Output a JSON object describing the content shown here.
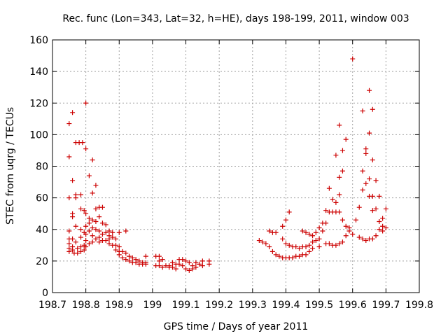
{
  "chart_data": {
    "type": "scatter",
    "title": "Rec. func (Lon=343, Lat=32, h=HE), days 198-199, 2011, window 003",
    "xlabel": "GPS time / Days of year 2011",
    "ylabel": "STEC from uqrg / TECUs",
    "xlim": [
      198.7,
      199.8
    ],
    "ylim": [
      0,
      160
    ],
    "x_ticks": [
      "198.7",
      "198.8",
      "198.9",
      "199",
      "199.1",
      "199.2",
      "199.3",
      "199.4",
      "199.5",
      "199.6",
      "199.7",
      "199.8"
    ],
    "y_ticks": [
      "0",
      "20",
      "40",
      "60",
      "80",
      "100",
      "120",
      "140",
      "160"
    ],
    "x_tick_values": [
      198.7,
      198.8,
      198.9,
      199.0,
      199.1,
      199.2,
      199.3,
      199.4,
      199.5,
      199.6,
      199.7,
      199.8
    ],
    "y_tick_values": [
      0,
      20,
      40,
      60,
      80,
      100,
      120,
      140,
      160
    ],
    "grid": true,
    "marker": "+",
    "color": "#cc0000",
    "series": [
      {
        "name": "STEC",
        "points": [
          [
            198.75,
            107
          ],
          [
            198.75,
            86
          ],
          [
            198.75,
            60
          ],
          [
            198.75,
            39
          ],
          [
            198.75,
            34
          ],
          [
            198.75,
            31
          ],
          [
            198.75,
            28
          ],
          [
            198.75,
            26
          ],
          [
            198.76,
            114
          ],
          [
            198.76,
            71
          ],
          [
            198.76,
            50
          ],
          [
            198.76,
            48
          ],
          [
            198.76,
            34
          ],
          [
            198.76,
            29
          ],
          [
            198.76,
            27
          ],
          [
            198.765,
            25
          ],
          [
            198.77,
            95
          ],
          [
            198.77,
            62
          ],
          [
            198.77,
            60
          ],
          [
            198.77,
            42
          ],
          [
            198.77,
            32
          ],
          [
            198.775,
            28
          ],
          [
            198.775,
            25
          ],
          [
            198.78,
            95
          ],
          [
            198.785,
            62
          ],
          [
            198.785,
            53
          ],
          [
            198.785,
            40
          ],
          [
            198.785,
            35
          ],
          [
            198.785,
            29
          ],
          [
            198.785,
            26
          ],
          [
            198.79,
            95
          ],
          [
            198.795,
            52
          ],
          [
            198.795,
            38
          ],
          [
            198.795,
            30
          ],
          [
            198.795,
            27
          ],
          [
            198.8,
            120
          ],
          [
            198.8,
            91
          ],
          [
            198.8,
            50
          ],
          [
            198.8,
            42
          ],
          [
            198.8,
            37
          ],
          [
            198.8,
            33
          ],
          [
            198.8,
            29
          ],
          [
            198.81,
            74
          ],
          [
            198.81,
            47
          ],
          [
            198.81,
            44
          ],
          [
            198.81,
            39
          ],
          [
            198.81,
            31
          ],
          [
            198.82,
            84
          ],
          [
            198.82,
            63
          ],
          [
            198.82,
            46
          ],
          [
            198.82,
            41
          ],
          [
            198.82,
            36
          ],
          [
            198.82,
            32
          ],
          [
            198.83,
            68
          ],
          [
            198.83,
            53
          ],
          [
            198.83,
            45
          ],
          [
            198.83,
            40
          ],
          [
            198.83,
            34
          ],
          [
            198.84,
            54
          ],
          [
            198.84,
            48
          ],
          [
            198.84,
            39
          ],
          [
            198.84,
            35
          ],
          [
            198.84,
            32
          ],
          [
            198.85,
            54
          ],
          [
            198.85,
            44
          ],
          [
            198.85,
            37
          ],
          [
            198.85,
            33
          ],
          [
            198.86,
            43
          ],
          [
            198.86,
            38
          ],
          [
            198.86,
            33
          ],
          [
            198.87,
            39
          ],
          [
            198.87,
            36
          ],
          [
            198.87,
            34
          ],
          [
            198.87,
            31
          ],
          [
            198.88,
            38
          ],
          [
            198.88,
            35
          ],
          [
            198.88,
            30
          ],
          [
            198.89,
            34
          ],
          [
            198.89,
            30
          ],
          [
            198.89,
            27
          ],
          [
            198.9,
            38
          ],
          [
            198.9,
            29
          ],
          [
            198.9,
            26
          ],
          [
            198.9,
            24
          ],
          [
            198.91,
            26
          ],
          [
            198.91,
            22
          ],
          [
            198.92,
            39
          ],
          [
            198.92,
            25
          ],
          [
            198.92,
            21
          ],
          [
            198.93,
            23
          ],
          [
            198.93,
            20
          ],
          [
            198.94,
            22
          ],
          [
            198.94,
            19
          ],
          [
            198.95,
            21
          ],
          [
            198.95,
            19
          ],
          [
            198.96,
            20
          ],
          [
            198.96,
            18
          ],
          [
            198.97,
            19
          ],
          [
            198.97,
            18
          ],
          [
            198.98,
            23
          ],
          [
            198.98,
            19
          ],
          [
            198.98,
            18
          ],
          [
            199.01,
            23
          ],
          [
            199.01,
            17
          ],
          [
            199.02,
            23
          ],
          [
            199.02,
            20
          ],
          [
            199.02,
            17
          ],
          [
            199.03,
            21
          ],
          [
            199.03,
            16
          ],
          [
            199.04,
            17
          ],
          [
            199.05,
            17
          ],
          [
            199.05,
            16
          ],
          [
            199.06,
            19
          ],
          [
            199.06,
            16
          ],
          [
            199.07,
            18
          ],
          [
            199.07,
            15
          ],
          [
            199.08,
            21
          ],
          [
            199.08,
            18
          ],
          [
            199.09,
            21
          ],
          [
            199.09,
            17
          ],
          [
            199.1,
            20
          ],
          [
            199.1,
            15
          ],
          [
            199.11,
            19
          ],
          [
            199.11,
            14
          ],
          [
            199.12,
            17
          ],
          [
            199.12,
            15
          ],
          [
            199.13,
            19
          ],
          [
            199.13,
            16
          ],
          [
            199.14,
            18
          ],
          [
            199.15,
            20
          ],
          [
            199.15,
            17
          ],
          [
            199.17,
            20
          ],
          [
            199.17,
            18
          ],
          [
            199.32,
            33
          ],
          [
            199.33,
            32
          ],
          [
            199.34,
            31
          ],
          [
            199.35,
            39
          ],
          [
            199.35,
            29
          ],
          [
            199.36,
            38
          ],
          [
            199.36,
            26
          ],
          [
            199.37,
            38
          ],
          [
            199.37,
            24
          ],
          [
            199.38,
            23
          ],
          [
            199.39,
            42
          ],
          [
            199.39,
            34
          ],
          [
            199.39,
            22
          ],
          [
            199.4,
            46
          ],
          [
            199.4,
            31
          ],
          [
            199.4,
            22
          ],
          [
            199.41,
            51
          ],
          [
            199.41,
            30
          ],
          [
            199.41,
            22
          ],
          [
            199.42,
            29
          ],
          [
            199.42,
            22
          ],
          [
            199.43,
            29
          ],
          [
            199.43,
            23
          ],
          [
            199.44,
            28
          ],
          [
            199.44,
            23
          ],
          [
            199.45,
            39
          ],
          [
            199.45,
            29
          ],
          [
            199.45,
            24
          ],
          [
            199.46,
            38
          ],
          [
            199.46,
            29
          ],
          [
            199.46,
            24
          ],
          [
            199.47,
            37
          ],
          [
            199.47,
            30
          ],
          [
            199.47,
            26
          ],
          [
            199.48,
            36
          ],
          [
            199.48,
            32
          ],
          [
            199.48,
            28
          ],
          [
            199.49,
            38
          ],
          [
            199.49,
            33
          ],
          [
            199.5,
            41
          ],
          [
            199.5,
            34
          ],
          [
            199.5,
            29
          ],
          [
            199.51,
            44
          ],
          [
            199.51,
            39
          ],
          [
            199.52,
            52
          ],
          [
            199.52,
            44
          ],
          [
            199.52,
            31
          ],
          [
            199.53,
            66
          ],
          [
            199.53,
            51
          ],
          [
            199.53,
            31
          ],
          [
            199.54,
            59
          ],
          [
            199.54,
            51
          ],
          [
            199.54,
            30
          ],
          [
            199.55,
            87
          ],
          [
            199.55,
            57
          ],
          [
            199.55,
            51
          ],
          [
            199.55,
            30
          ],
          [
            199.56,
            106
          ],
          [
            199.56,
            73
          ],
          [
            199.56,
            62
          ],
          [
            199.56,
            51
          ],
          [
            199.56,
            31
          ],
          [
            199.57,
            90
          ],
          [
            199.57,
            77
          ],
          [
            199.57,
            46
          ],
          [
            199.57,
            32
          ],
          [
            199.58,
            97
          ],
          [
            199.58,
            42
          ],
          [
            199.58,
            36
          ],
          [
            199.59,
            41
          ],
          [
            199.59,
            39
          ],
          [
            199.6,
            148
          ],
          [
            199.6,
            37
          ],
          [
            199.61,
            46
          ],
          [
            199.62,
            54
          ],
          [
            199.62,
            35
          ],
          [
            199.63,
            115
          ],
          [
            199.63,
            77
          ],
          [
            199.63,
            65
          ],
          [
            199.63,
            34
          ],
          [
            199.64,
            91
          ],
          [
            199.64,
            88
          ],
          [
            199.64,
            69
          ],
          [
            199.64,
            33
          ],
          [
            199.65,
            128
          ],
          [
            199.65,
            101
          ],
          [
            199.65,
            72
          ],
          [
            199.65,
            61
          ],
          [
            199.65,
            34
          ],
          [
            199.66,
            116
          ],
          [
            199.66,
            84
          ],
          [
            199.66,
            61
          ],
          [
            199.66,
            52
          ],
          [
            199.66,
            34
          ],
          [
            199.67,
            71
          ],
          [
            199.67,
            53
          ],
          [
            199.67,
            36
          ],
          [
            199.68,
            61
          ],
          [
            199.68,
            45
          ],
          [
            199.68,
            40
          ],
          [
            199.69,
            47
          ],
          [
            199.69,
            42
          ],
          [
            199.69,
            39
          ],
          [
            199.7,
            53
          ],
          [
            199.7,
            41
          ]
        ]
      }
    ]
  }
}
